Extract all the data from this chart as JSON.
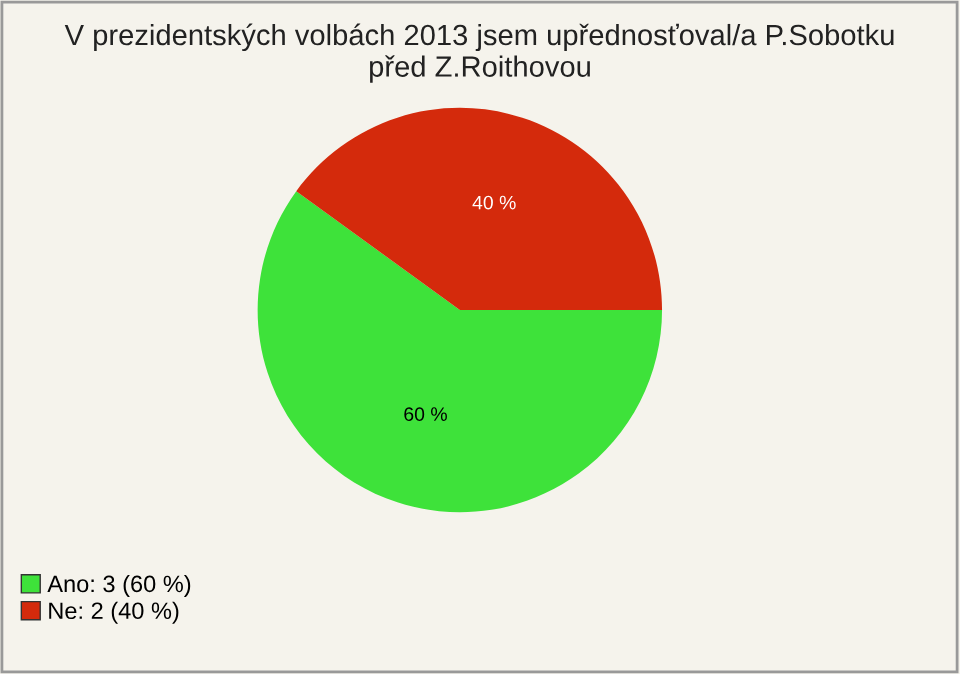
{
  "chart_data": {
    "type": "pie",
    "title": "V prezidentských volbách 2013 jsem upřednosťoval/a P.Sobotku před Z.Roithovou",
    "categories": [
      "Ano: 3 (60 %)",
      "Ne: 2 (40 %)"
    ],
    "values": [
      60,
      40
    ],
    "colors": [
      "#3ee23a",
      "#d42a0c"
    ],
    "value_labels": [
      "60 %",
      "40 %"
    ],
    "legend": "bottom left"
  }
}
